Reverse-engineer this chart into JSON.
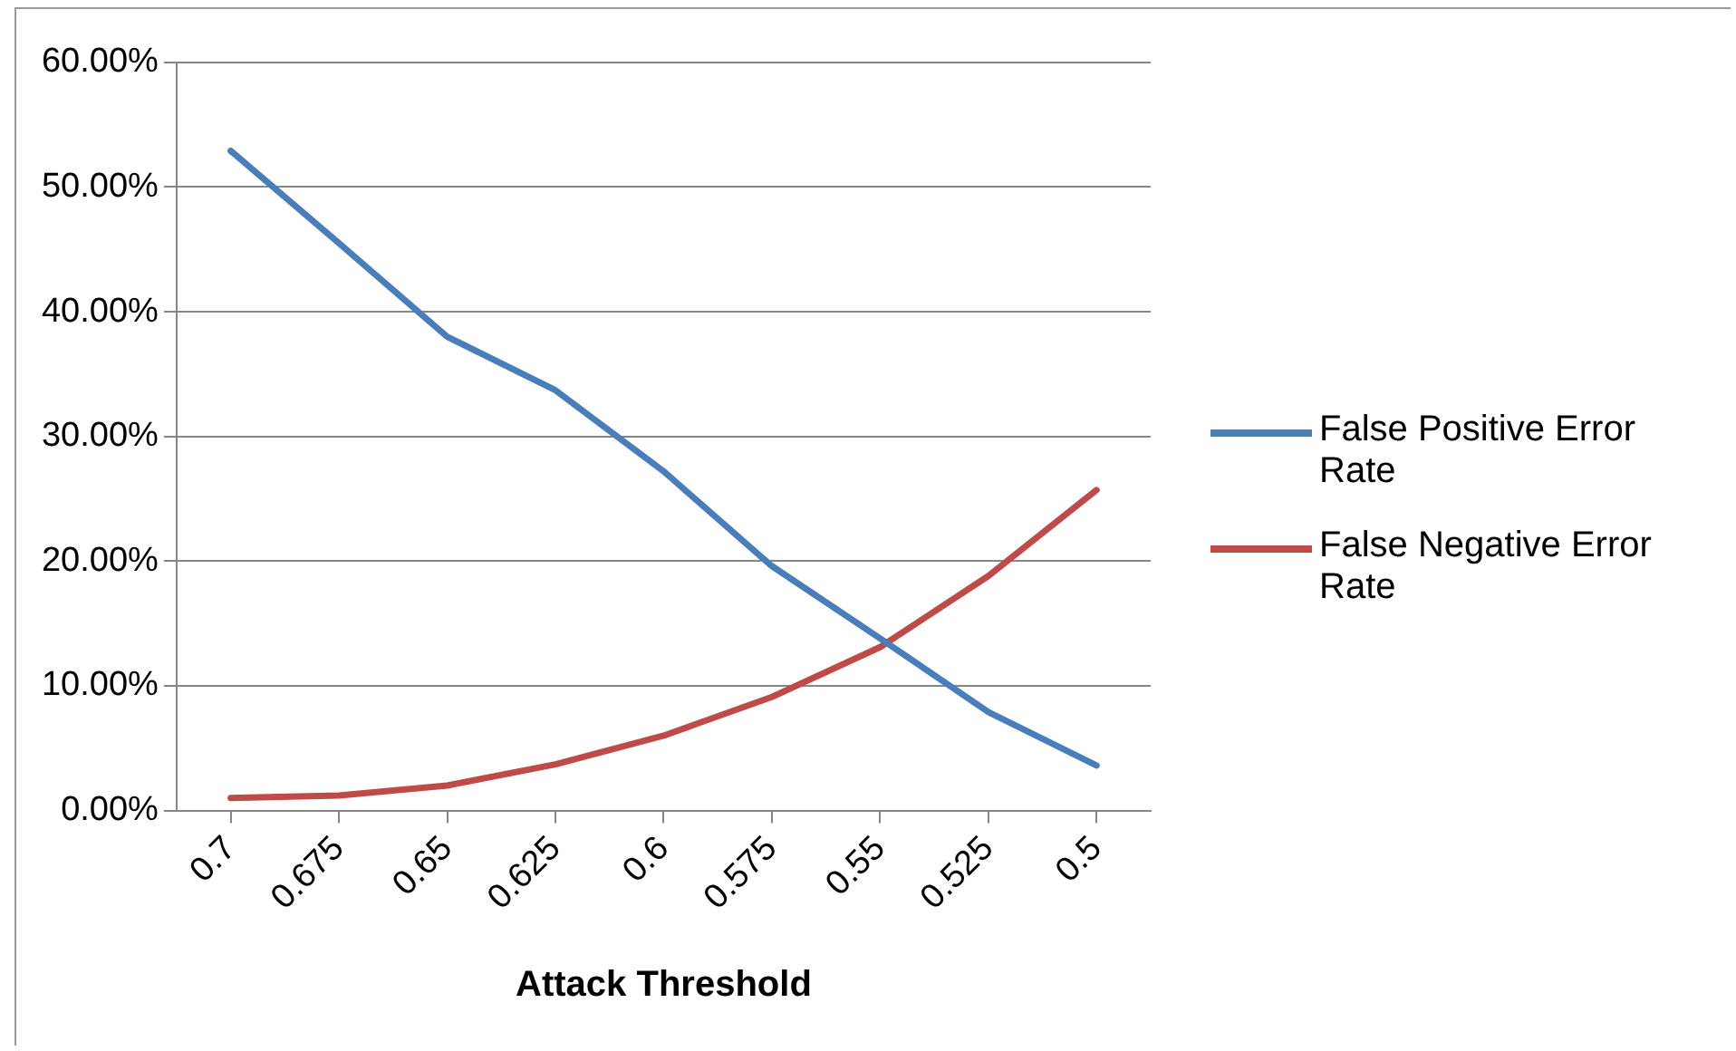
{
  "chart_data": {
    "type": "line",
    "xlabel": "Attack Threshold",
    "categories": [
      "0.7",
      "0.675",
      "0.65",
      "0.625",
      "0.6",
      "0.575",
      "0.55",
      "0.525",
      "0.5"
    ],
    "series": [
      {
        "name": "False Positive Error Rate",
        "color": "#4a7ebb",
        "values": [
          52.9,
          45.5,
          38.0,
          33.7,
          27.2,
          19.6,
          13.8,
          7.9,
          3.6
        ]
      },
      {
        "name": "False Negative Error Rate",
        "color": "#be4b48",
        "values": [
          1.0,
          1.2,
          2.0,
          3.7,
          6.0,
          9.1,
          13.1,
          18.8,
          25.7
        ]
      }
    ],
    "ylim": [
      0,
      60
    ],
    "yticks": [
      {
        "value": 0,
        "label": "0.00%"
      },
      {
        "value": 10,
        "label": "10.00%"
      },
      {
        "value": 20,
        "label": "20.00%"
      },
      {
        "value": 30,
        "label": "30.00%"
      },
      {
        "value": 40,
        "label": "40.00%"
      },
      {
        "value": 50,
        "label": "50.00%"
      },
      {
        "value": 60,
        "label": "60.00%"
      }
    ],
    "grid": "y",
    "legend": "right",
    "marker": "none",
    "line_style": "solid"
  }
}
